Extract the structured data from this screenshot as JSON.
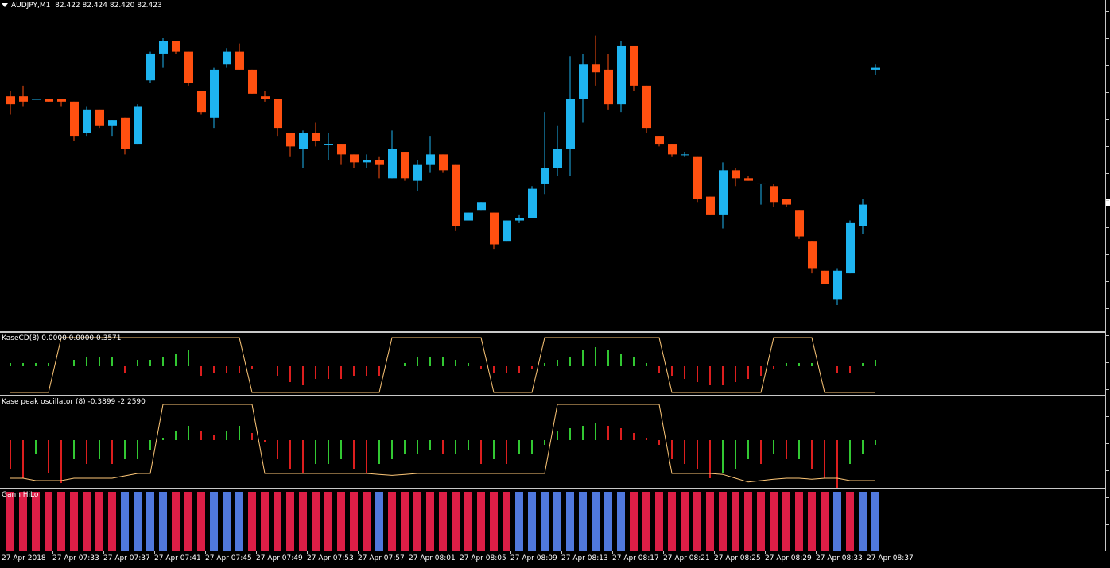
{
  "main": {
    "symbol_label": "AUDJPY,M1",
    "ohlc": "82.422 82.424 82.420 82.423"
  },
  "kase_cd": {
    "label": "KaseCD(8) 0.0000 0.0000 0.3571"
  },
  "kase_peak": {
    "label": "Kase peak oscillator (8) -0.3899 -2.2590"
  },
  "gann": {
    "label": "Gann HiLo"
  },
  "colors": {
    "bull": "#1EB4F0",
    "bear": "#FF5010",
    "hist_green": "#32C832",
    "hist_red": "#DC1E1E",
    "line": "#FFC878",
    "gann_red": "#DC1E46",
    "gann_blue": "#5078DC"
  },
  "chart_data": [
    {
      "type": "candlestick",
      "title": "AUDJPY,M1",
      "candles": [
        {
          "o": 82.412,
          "h": 82.414,
          "l": 82.405,
          "c": 82.409
        },
        {
          "o": 82.412,
          "h": 82.416,
          "l": 82.408,
          "c": 82.41
        },
        {
          "o": 82.411,
          "h": 82.411,
          "l": 82.411,
          "c": 82.411
        },
        {
          "o": 82.411,
          "h": 82.411,
          "l": 82.41,
          "c": 82.41
        },
        {
          "o": 82.411,
          "h": 82.411,
          "l": 82.408,
          "c": 82.41
        },
        {
          "o": 82.41,
          "h": 82.41,
          "l": 82.395,
          "c": 82.397
        },
        {
          "o": 82.398,
          "h": 82.408,
          "l": 82.397,
          "c": 82.407
        },
        {
          "o": 82.407,
          "h": 82.407,
          "l": 82.4,
          "c": 82.401
        },
        {
          "o": 82.401,
          "h": 82.403,
          "l": 82.397,
          "c": 82.403
        },
        {
          "o": 82.404,
          "h": 82.404,
          "l": 82.39,
          "c": 82.392
        },
        {
          "o": 82.394,
          "h": 82.409,
          "l": 82.394,
          "c": 82.408
        },
        {
          "o": 82.418,
          "h": 82.429,
          "l": 82.417,
          "c": 82.428
        },
        {
          "o": 82.428,
          "h": 82.434,
          "l": 82.423,
          "c": 82.433
        },
        {
          "o": 82.433,
          "h": 82.433,
          "l": 82.428,
          "c": 82.429
        },
        {
          "o": 82.429,
          "h": 82.429,
          "l": 82.416,
          "c": 82.417
        },
        {
          "o": 82.414,
          "h": 82.414,
          "l": 82.405,
          "c": 82.406
        },
        {
          "o": 82.404,
          "h": 82.423,
          "l": 82.4,
          "c": 82.422
        },
        {
          "o": 82.424,
          "h": 82.43,
          "l": 82.423,
          "c": 82.429
        },
        {
          "o": 82.429,
          "h": 82.432,
          "l": 82.422,
          "c": 82.422
        },
        {
          "o": 82.422,
          "h": 82.422,
          "l": 82.413,
          "c": 82.413
        },
        {
          "o": 82.412,
          "h": 82.414,
          "l": 82.41,
          "c": 82.411
        },
        {
          "o": 82.411,
          "h": 82.411,
          "l": 82.397,
          "c": 82.4
        },
        {
          "o": 82.398,
          "h": 82.398,
          "l": 82.389,
          "c": 82.393
        },
        {
          "o": 82.392,
          "h": 82.399,
          "l": 82.385,
          "c": 82.398
        },
        {
          "o": 82.398,
          "h": 82.402,
          "l": 82.393,
          "c": 82.395
        },
        {
          "o": 82.394,
          "h": 82.398,
          "l": 82.388,
          "c": 82.394
        },
        {
          "o": 82.394,
          "h": 82.394,
          "l": 82.386,
          "c": 82.39
        },
        {
          "o": 82.39,
          "h": 82.39,
          "l": 82.385,
          "c": 82.387
        },
        {
          "o": 82.387,
          "h": 82.39,
          "l": 82.385,
          "c": 82.388
        },
        {
          "o": 82.388,
          "h": 82.389,
          "l": 82.381,
          "c": 82.386
        },
        {
          "o": 82.381,
          "h": 82.399,
          "l": 82.381,
          "c": 82.392
        },
        {
          "o": 82.391,
          "h": 82.391,
          "l": 82.38,
          "c": 82.381
        },
        {
          "o": 82.38,
          "h": 82.388,
          "l": 82.376,
          "c": 82.386
        },
        {
          "o": 82.386,
          "h": 82.397,
          "l": 82.383,
          "c": 82.39
        },
        {
          "o": 82.39,
          "h": 82.39,
          "l": 82.383,
          "c": 82.384
        },
        {
          "o": 82.386,
          "h": 82.386,
          "l": 82.361,
          "c": 82.363
        },
        {
          "o": 82.365,
          "h": 82.368,
          "l": 82.365,
          "c": 82.368
        },
        {
          "o": 82.369,
          "h": 82.372,
          "l": 82.369,
          "c": 82.372
        },
        {
          "o": 82.368,
          "h": 82.368,
          "l": 82.354,
          "c": 82.356
        },
        {
          "o": 82.357,
          "h": 82.365,
          "l": 82.357,
          "c": 82.365
        },
        {
          "o": 82.365,
          "h": 82.367,
          "l": 82.364,
          "c": 82.366
        },
        {
          "o": 82.366,
          "h": 82.378,
          "l": 82.366,
          "c": 82.377
        },
        {
          "o": 82.379,
          "h": 82.406,
          "l": 82.375,
          "c": 82.385
        },
        {
          "o": 82.385,
          "h": 82.401,
          "l": 82.382,
          "c": 82.392
        },
        {
          "o": 82.392,
          "h": 82.427,
          "l": 82.382,
          "c": 82.411
        },
        {
          "o": 82.411,
          "h": 82.428,
          "l": 82.402,
          "c": 82.424
        },
        {
          "o": 82.424,
          "h": 82.435,
          "l": 82.416,
          "c": 82.421
        },
        {
          "o": 82.422,
          "h": 82.428,
          "l": 82.407,
          "c": 82.409
        },
        {
          "o": 82.409,
          "h": 82.433,
          "l": 82.406,
          "c": 82.431
        },
        {
          "o": 82.431,
          "h": 82.431,
          "l": 82.414,
          "c": 82.416
        },
        {
          "o": 82.416,
          "h": 82.416,
          "l": 82.398,
          "c": 82.4
        },
        {
          "o": 82.397,
          "h": 82.397,
          "l": 82.393,
          "c": 82.394
        },
        {
          "o": 82.394,
          "h": 82.394,
          "l": 82.389,
          "c": 82.39
        },
        {
          "o": 82.39,
          "h": 82.391,
          "l": 82.389,
          "c": 82.39
        },
        {
          "o": 82.389,
          "h": 82.389,
          "l": 82.372,
          "c": 82.373
        },
        {
          "o": 82.374,
          "h": 82.374,
          "l": 82.367,
          "c": 82.367
        },
        {
          "o": 82.367,
          "h": 82.387,
          "l": 82.362,
          "c": 82.384
        },
        {
          "o": 82.384,
          "h": 82.385,
          "l": 82.378,
          "c": 82.381
        },
        {
          "o": 82.381,
          "h": 82.382,
          "l": 82.38,
          "c": 82.38
        },
        {
          "o": 82.379,
          "h": 82.379,
          "l": 82.371,
          "c": 82.379
        },
        {
          "o": 82.378,
          "h": 82.379,
          "l": 82.37,
          "c": 82.372
        },
        {
          "o": 82.373,
          "h": 82.373,
          "l": 82.37,
          "c": 82.371
        },
        {
          "o": 82.369,
          "h": 82.369,
          "l": 82.358,
          "c": 82.359
        },
        {
          "o": 82.357,
          "h": 82.357,
          "l": 82.345,
          "c": 82.347
        },
        {
          "o": 82.346,
          "h": 82.346,
          "l": 82.341,
          "c": 82.341
        },
        {
          "o": 82.335,
          "h": 82.347,
          "l": 82.333,
          "c": 82.346
        },
        {
          "o": 82.345,
          "h": 82.365,
          "l": 82.345,
          "c": 82.364
        },
        {
          "o": 82.363,
          "h": 82.373,
          "l": 82.36,
          "c": 82.371
        },
        {
          "o": 82.422,
          "h": 82.424,
          "l": 82.42,
          "c": 82.423
        }
      ]
    },
    {
      "type": "bar",
      "title": "KaseCD(8) 0.0000 0.0000 0.3571",
      "values": [
        0.01,
        0.01,
        0.01,
        0.01,
        0,
        0.02,
        0.03,
        0.03,
        0.03,
        -0.02,
        0.02,
        0.02,
        0.03,
        0.04,
        0.05,
        -0.03,
        -0.02,
        -0.02,
        -0.02,
        -0.01,
        0,
        -0.03,
        -0.05,
        -0.06,
        -0.04,
        -0.04,
        -0.04,
        -0.03,
        -0.03,
        -0.03,
        0,
        0.01,
        0.03,
        0.03,
        0.03,
        0.02,
        0.01,
        -0.01,
        -0.02,
        -0.02,
        -0.02,
        -0.01,
        0.01,
        0.02,
        0.03,
        0.05,
        0.06,
        0.05,
        0.04,
        0.03,
        0.01,
        -0.02,
        -0.03,
        -0.04,
        -0.05,
        -0.06,
        -0.06,
        -0.05,
        -0.04,
        -0.03,
        -0.01,
        0.01,
        0.01,
        0.01,
        0,
        -0.02,
        -0.02,
        0.01,
        0.02
      ],
      "signal_levels": [
        "low",
        "low",
        "low",
        "low",
        "high",
        "high",
        "high",
        "high",
        "high",
        "high",
        "high",
        "high",
        "high",
        "high",
        "high",
        "high",
        "high",
        "high",
        "high",
        "low",
        "low",
        "low",
        "low",
        "low",
        "low",
        "low",
        "low",
        "low",
        "low",
        "low",
        "high",
        "high",
        "high",
        "high",
        "high",
        "high",
        "high",
        "high",
        "low",
        "low",
        "low",
        "low",
        "high",
        "high",
        "high",
        "high",
        "high",
        "high",
        "high",
        "high",
        "high",
        "high",
        "low",
        "low",
        "low",
        "low",
        "low",
        "low",
        "low",
        "low",
        "high",
        "high",
        "high",
        "high",
        "low",
        "low",
        "low",
        "low",
        "low"
      ]
    },
    {
      "type": "bar",
      "title": "Kase peak oscillator (8) -0.3899 -2.2590",
      "values": [
        -0.6,
        -0.8,
        -0.3,
        -0.7,
        -0.9,
        -0.4,
        -0.5,
        -0.4,
        -0.5,
        -0.4,
        -0.4,
        -0.2,
        0.05,
        0.2,
        0.3,
        0.2,
        0.1,
        0.2,
        0.3,
        0.15,
        -0.05,
        -0.4,
        -0.6,
        -0.7,
        -0.5,
        -0.5,
        -0.4,
        -0.6,
        -0.7,
        -0.5,
        -0.4,
        -0.3,
        -0.3,
        -0.2,
        -0.3,
        -0.3,
        -0.2,
        -0.5,
        -0.4,
        -0.5,
        -0.3,
        -0.3,
        -0.1,
        0.2,
        0.25,
        0.3,
        0.35,
        0.3,
        0.25,
        0.15,
        0.05,
        -0.1,
        -0.4,
        -0.5,
        -0.6,
        -0.8,
        -0.7,
        -0.6,
        -0.4,
        -0.5,
        -0.3,
        -0.4,
        -0.4,
        -0.6,
        -0.8,
        -1.0,
        -0.5,
        -0.3,
        -0.1
      ],
      "line_levels": [
        -0.8,
        -0.8,
        -0.85,
        -0.85,
        -0.85,
        -0.8,
        -0.8,
        -0.8,
        -0.8,
        -0.75,
        -0.7,
        -0.7,
        0.75,
        0.75,
        0.75,
        0.75,
        0.75,
        0.75,
        0.75,
        0.75,
        -0.7,
        -0.7,
        -0.7,
        -0.7,
        -0.7,
        -0.7,
        -0.7,
        -0.7,
        -0.7,
        -0.72,
        -0.74,
        -0.72,
        -0.7,
        -0.7,
        -0.7,
        -0.7,
        -0.7,
        -0.7,
        -0.7,
        -0.7,
        -0.7,
        -0.7,
        -0.7,
        0.75,
        0.75,
        0.75,
        0.75,
        0.75,
        0.75,
        0.75,
        0.75,
        0.75,
        -0.7,
        -0.7,
        -0.7,
        -0.7,
        -0.72,
        -0.8,
        -0.88,
        -0.85,
        -0.82,
        -0.8,
        -0.8,
        -0.82,
        -0.8,
        -0.8,
        -0.85,
        -0.85,
        -0.85
      ]
    },
    {
      "type": "bar",
      "title": "Gann HiLo",
      "states": [
        "R",
        "R",
        "R",
        "R",
        "R",
        "R",
        "R",
        "R",
        "R",
        "B",
        "B",
        "B",
        "B",
        "R",
        "R",
        "R",
        "B",
        "B",
        "B",
        "R",
        "R",
        "R",
        "R",
        "R",
        "R",
        "R",
        "R",
        "R",
        "R",
        "B",
        "R",
        "R",
        "R",
        "R",
        "R",
        "R",
        "R",
        "R",
        "R",
        "R",
        "B",
        "B",
        "B",
        "B",
        "B",
        "B",
        "B",
        "B",
        "B",
        "R",
        "R",
        "R",
        "R",
        "R",
        "R",
        "R",
        "R",
        "R",
        "R",
        "R",
        "R",
        "R",
        "R",
        "R",
        "R",
        "B",
        "R",
        "B",
        "B"
      ]
    }
  ],
  "x_axis": {
    "labels": [
      "27 Apr 2018",
      "27 Apr 07:33",
      "27 Apr 07:37",
      "27 Apr 07:41",
      "27 Apr 07:45",
      "27 Apr 07:49",
      "27 Apr 07:53",
      "27 Apr 07:57",
      "27 Apr 08:01",
      "27 Apr 08:05",
      "27 Apr 08:09",
      "27 Apr 08:13",
      "27 Apr 08:17",
      "27 Apr 08:21",
      "27 Apr 08:25",
      "27 Apr 08:29",
      "27 Apr 08:33",
      "27 Apr 08:37"
    ]
  }
}
